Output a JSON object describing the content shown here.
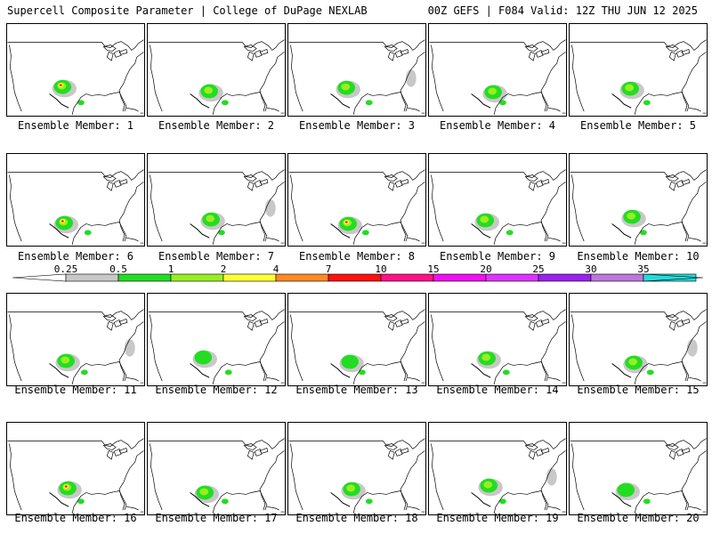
{
  "header": {
    "left": "Supercell Composite Parameter | College of DuPage NEXLAB",
    "right": "00Z GEFS | F084 Valid: 12Z THU JUN 12 2025"
  },
  "colorbar": {
    "ticks": [
      "0.25",
      "0.5",
      "1",
      "2",
      "4",
      "7",
      "10",
      "15",
      "20",
      "25",
      "30",
      "35"
    ],
    "colors": [
      "#c8c8c8",
      "#22dd22",
      "#99ee22",
      "#ffff33",
      "#ff8822",
      "#ff1111",
      "#ff1188",
      "#ee11ee",
      "#dd33ff",
      "#9922ee",
      "#bb77dd",
      "#22dddd"
    ]
  },
  "members": [
    {
      "label": "Ensemble Member: 1",
      "level": 3
    },
    {
      "label": "Ensemble Member: 2",
      "level": 2
    },
    {
      "label": "Ensemble Member: 3",
      "level": 2
    },
    {
      "label": "Ensemble Member: 4",
      "level": 2
    },
    {
      "label": "Ensemble Member: 5",
      "level": 2
    },
    {
      "label": "Ensemble Member: 6",
      "level": 3
    },
    {
      "label": "Ensemble Member: 7",
      "level": 2
    },
    {
      "label": "Ensemble Member: 8",
      "level": 3
    },
    {
      "label": "Ensemble Member: 9",
      "level": 2
    },
    {
      "label": "Ensemble Member: 10",
      "level": 2
    },
    {
      "label": "Ensemble Member: 11",
      "level": 2
    },
    {
      "label": "Ensemble Member: 12",
      "level": 1
    },
    {
      "label": "Ensemble Member: 13",
      "level": 1
    },
    {
      "label": "Ensemble Member: 14",
      "level": 2
    },
    {
      "label": "Ensemble Member: 15",
      "level": 2
    },
    {
      "label": "Ensemble Member: 16",
      "level": 3
    },
    {
      "label": "Ensemble Member: 17",
      "level": 2
    },
    {
      "label": "Ensemble Member: 18",
      "level": 2
    },
    {
      "label": "Ensemble Member: 19",
      "level": 2
    },
    {
      "label": "Ensemble Member: 20",
      "level": 1
    }
  ]
}
